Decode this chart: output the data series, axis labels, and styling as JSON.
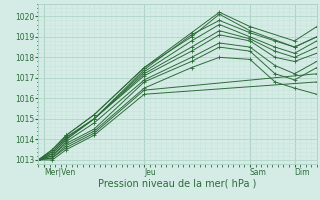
{
  "xlabel": "Pression niveau de la mer( hPa )",
  "ylim": [
    1012.8,
    1020.6
  ],
  "yticks": [
    1013,
    1014,
    1015,
    1016,
    1017,
    1018,
    1019,
    1020
  ],
  "bg_color": "#d4ece5",
  "grid_color_major": "#b0d4c8",
  "grid_color_minor": "#c8e4dc",
  "line_color": "#2d6b3a",
  "marker": "+",
  "day_labels": [
    "Mer|Ven",
    "Jeu",
    "Sam",
    "Dim"
  ],
  "day_positions": [
    0.02,
    0.38,
    0.76,
    0.92
  ],
  "xlim": [
    0.0,
    1.0
  ],
  "lines": [
    {
      "x": [
        0.0,
        0.05,
        0.1,
        0.2,
        0.38,
        0.55,
        0.65,
        0.76,
        0.92,
        1.0
      ],
      "y": [
        1013.0,
        1013.5,
        1014.2,
        1015.2,
        1017.5,
        1019.2,
        1020.2,
        1019.5,
        1018.8,
        1019.5
      ]
    },
    {
      "x": [
        0.0,
        0.05,
        0.1,
        0.2,
        0.38,
        0.55,
        0.65,
        0.76,
        0.92,
        1.0
      ],
      "y": [
        1013.0,
        1013.5,
        1014.2,
        1015.2,
        1017.5,
        1019.0,
        1020.1,
        1019.3,
        1018.5,
        1019.0
      ]
    },
    {
      "x": [
        0.0,
        0.05,
        0.1,
        0.2,
        0.38,
        0.55,
        0.65,
        0.76,
        0.85,
        0.92,
        1.0
      ],
      "y": [
        1013.0,
        1013.4,
        1014.1,
        1015.0,
        1017.4,
        1019.1,
        1019.8,
        1019.2,
        1018.8,
        1018.5,
        1019.0
      ]
    },
    {
      "x": [
        0.0,
        0.05,
        0.1,
        0.2,
        0.38,
        0.55,
        0.65,
        0.76,
        0.85,
        0.92,
        1.0
      ],
      "y": [
        1013.0,
        1013.4,
        1014.1,
        1015.0,
        1017.3,
        1018.8,
        1019.6,
        1019.0,
        1018.5,
        1018.2,
        1018.8
      ]
    },
    {
      "x": [
        0.0,
        0.05,
        0.1,
        0.2,
        0.38,
        0.55,
        0.65,
        0.76,
        0.85,
        0.92,
        1.0
      ],
      "y": [
        1013.0,
        1013.3,
        1014.0,
        1015.0,
        1017.2,
        1018.5,
        1019.3,
        1018.9,
        1018.3,
        1018.0,
        1018.5
      ]
    },
    {
      "x": [
        0.0,
        0.05,
        0.1,
        0.2,
        0.38,
        0.55,
        0.65,
        0.76,
        0.85,
        0.92,
        1.0
      ],
      "y": [
        1013.0,
        1013.3,
        1014.0,
        1015.0,
        1017.1,
        1018.3,
        1019.1,
        1018.8,
        1018.0,
        1017.8,
        1018.2
      ]
    },
    {
      "x": [
        0.0,
        0.05,
        0.1,
        0.2,
        0.38,
        0.55,
        0.65,
        0.76,
        0.85,
        0.92,
        1.0
      ],
      "y": [
        1013.0,
        1013.2,
        1013.9,
        1014.8,
        1016.9,
        1018.0,
        1018.7,
        1018.5,
        1017.6,
        1017.2,
        1017.8
      ]
    },
    {
      "x": [
        0.0,
        0.05,
        0.1,
        0.2,
        0.38,
        0.55,
        0.65,
        0.76,
        0.85,
        0.92,
        1.0
      ],
      "y": [
        1013.0,
        1013.2,
        1013.8,
        1014.5,
        1016.8,
        1017.8,
        1018.5,
        1018.3,
        1017.2,
        1016.9,
        1017.5
      ]
    },
    {
      "x": [
        0.0,
        0.05,
        0.1,
        0.2,
        0.38,
        0.55,
        0.65,
        0.76,
        0.85,
        0.92,
        1.0
      ],
      "y": [
        1013.0,
        1013.1,
        1013.7,
        1014.4,
        1016.5,
        1017.5,
        1018.0,
        1017.9,
        1016.8,
        1016.5,
        1016.2
      ]
    },
    {
      "x": [
        0.0,
        0.05,
        0.1,
        0.2,
        0.38,
        1.0
      ],
      "y": [
        1013.0,
        1013.1,
        1013.6,
        1014.3,
        1016.4,
        1017.2
      ]
    },
    {
      "x": [
        0.0,
        0.05,
        0.1,
        0.2,
        0.38,
        1.0
      ],
      "y": [
        1013.0,
        1013.0,
        1013.5,
        1014.2,
        1016.2,
        1016.8
      ]
    }
  ]
}
